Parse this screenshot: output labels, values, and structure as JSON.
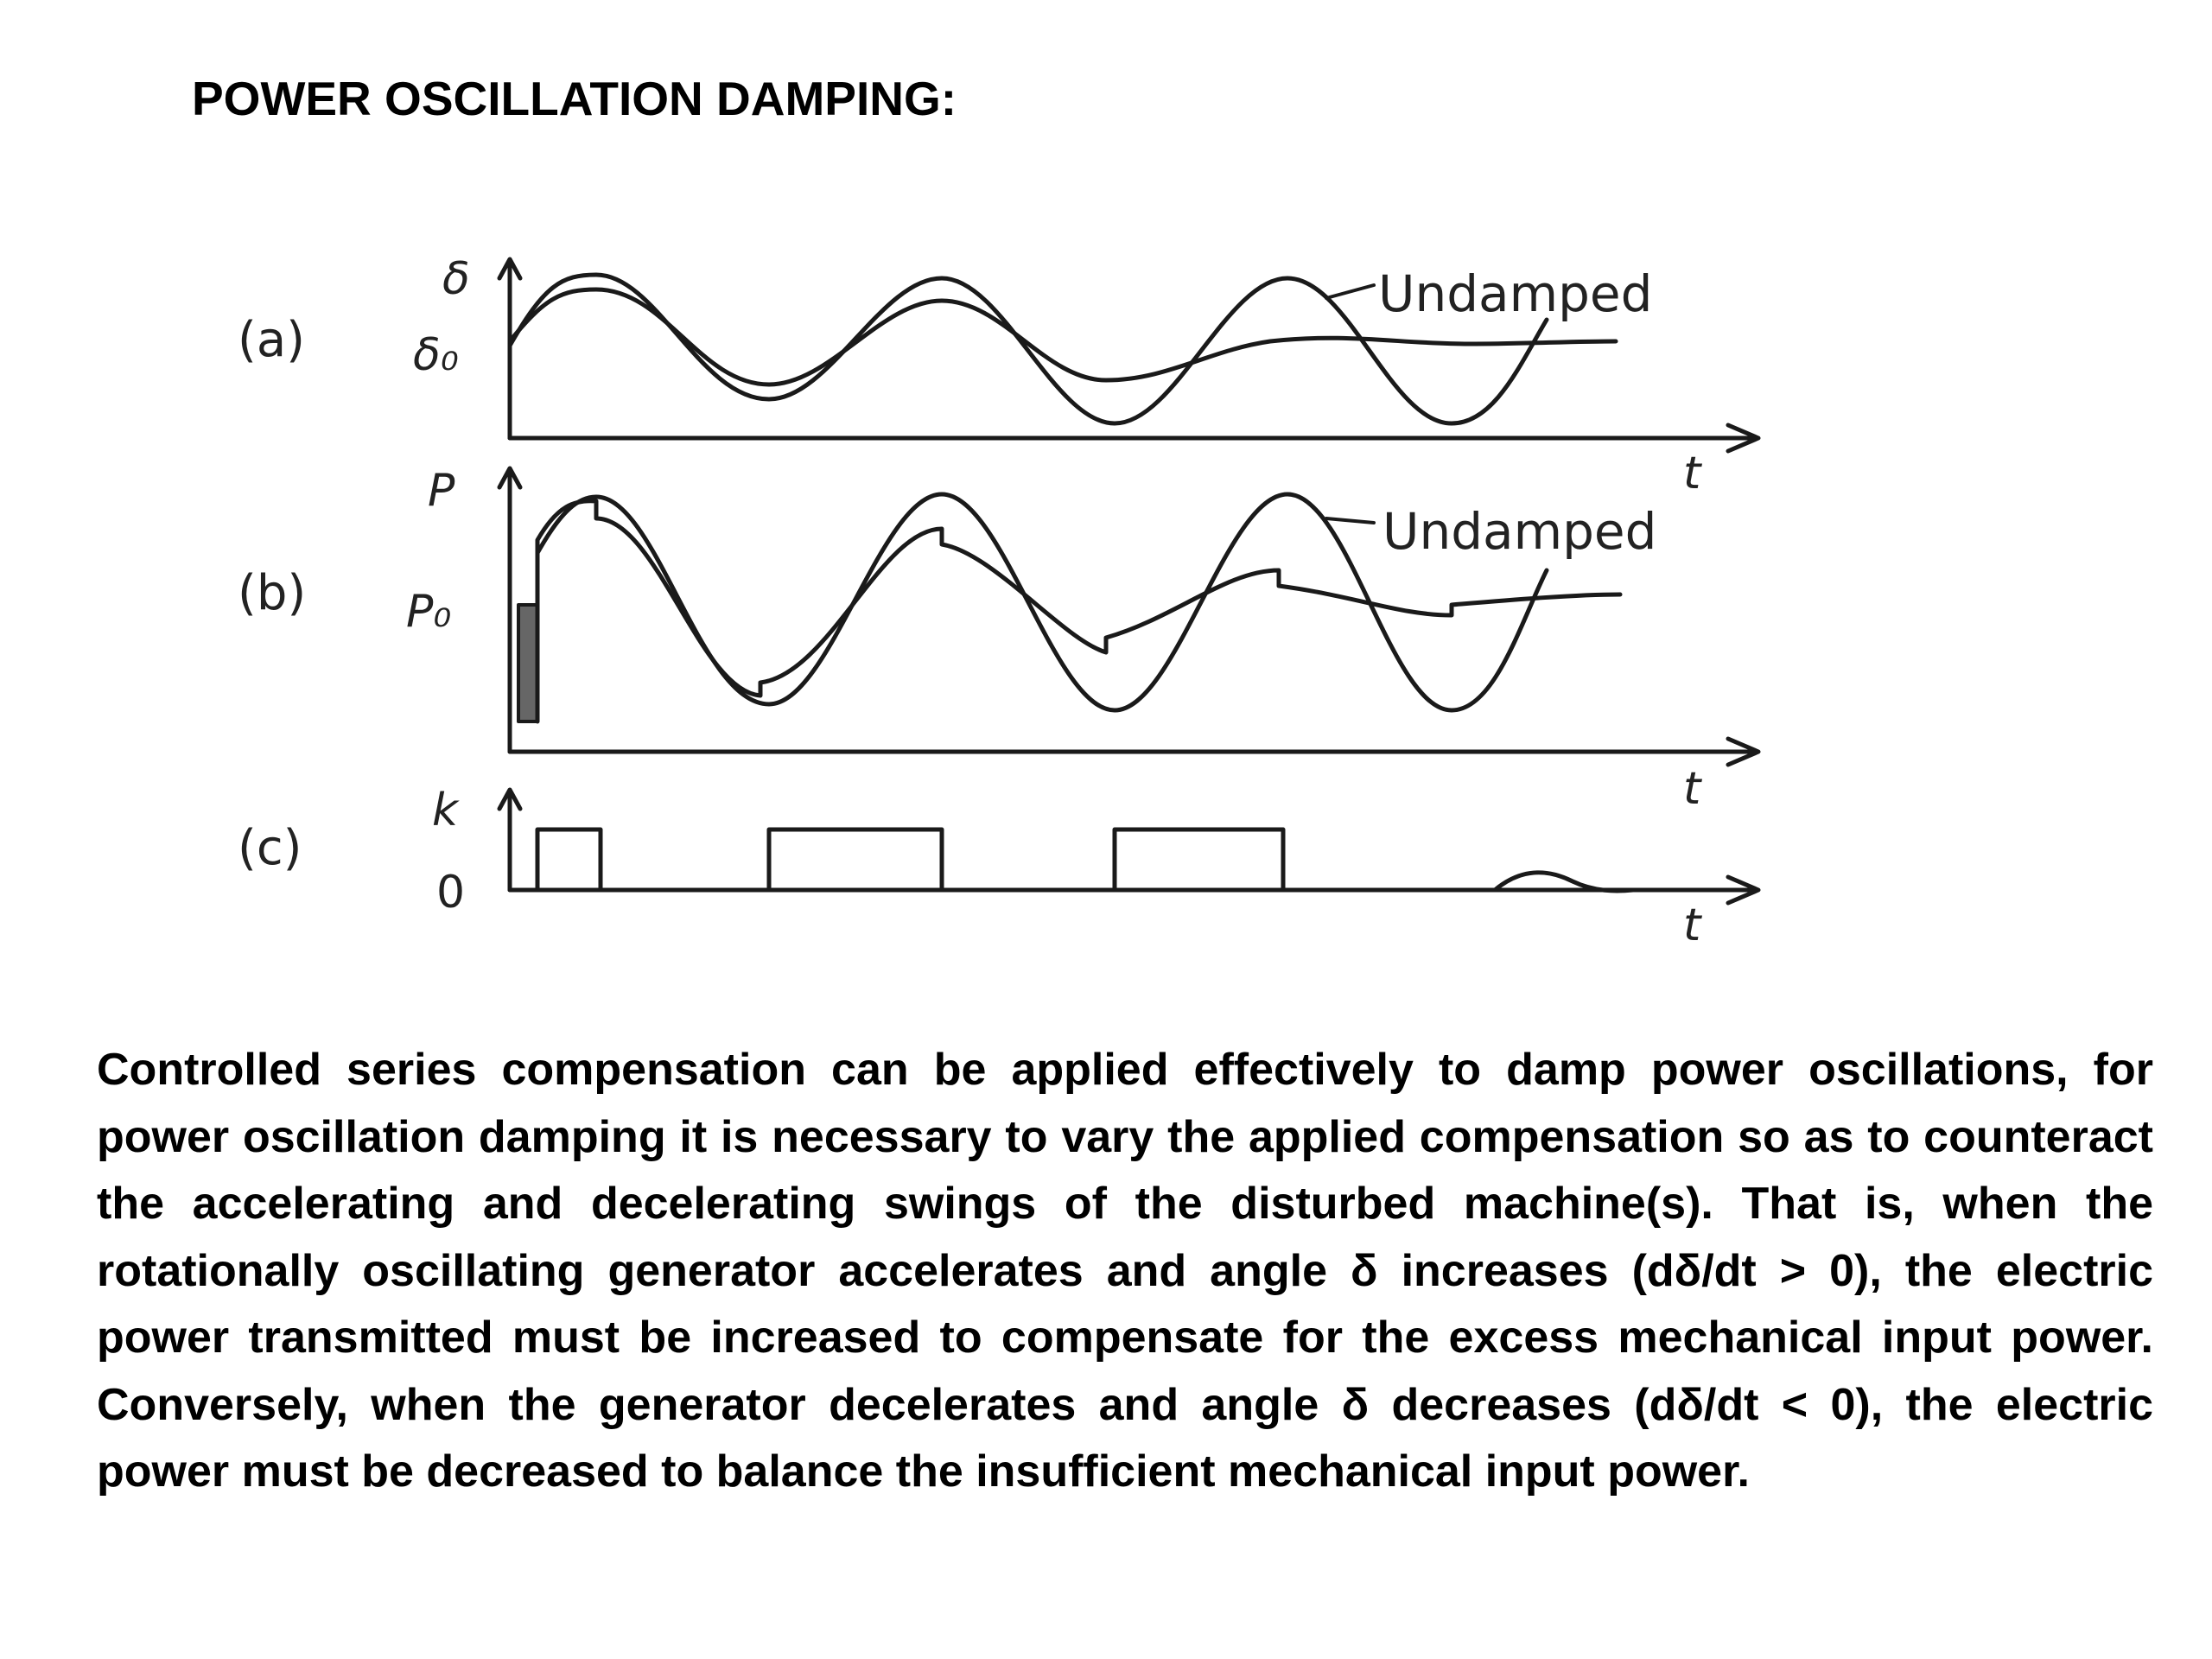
{
  "title": "POWER OSCILLATION DAMPING:",
  "figure": {
    "panels": [
      {
        "id": "a",
        "label": "(a)",
        "y_label": "δ",
        "ref_label": "δ₀",
        "x_label": "t",
        "annotation": "Undamped"
      },
      {
        "id": "b",
        "label": "(b)",
        "y_label": "P",
        "ref_label": "P₀",
        "x_label": "t",
        "annotation": "Undamped"
      },
      {
        "id": "c",
        "label": "(c)",
        "y_label": "k",
        "ref_label": "0",
        "x_label": "t",
        "annotation": ""
      }
    ]
  },
  "body": "Controlled series compensation can be applied effectively to damp power oscillations, for power oscillation damping it is necessary to vary the applied compensation so as to counteract the accelerating and decelerating swings of the disturbed machine(s). That is, when the rotationally oscillating generator accelerates and angle δ increases (dδ/dt > 0), the electric power transmitted must be increased to compensate for the excess mechanical input power. Conversely, when the generator decelerates and angle δ decreases (dδ/dt < 0), the electric power must be decreased to balance the insufficient mechanical input power."
}
